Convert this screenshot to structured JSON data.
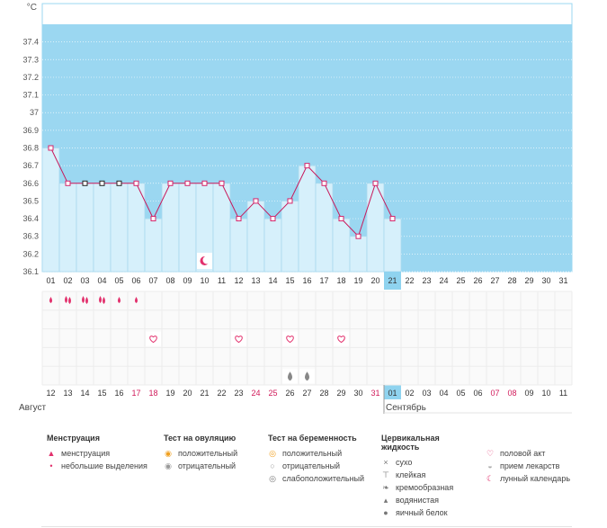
{
  "chart_data": {
    "type": "line",
    "y_unit": "°C",
    "ylim": [
      36.1,
      37.5
    ],
    "y_ticks": [
      "37.4",
      "37.3",
      "37.2",
      "37.1",
      "37",
      "36.9",
      "36.8",
      "36.7",
      "36.6",
      "36.5",
      "36.4",
      "36.3",
      "36.2",
      "36.1"
    ],
    "cycle_days": [
      "01",
      "02",
      "03",
      "04",
      "05",
      "06",
      "07",
      "08",
      "09",
      "10",
      "11",
      "12",
      "13",
      "14",
      "15",
      "16",
      "17",
      "18",
      "19",
      "20",
      "21",
      "22",
      "23",
      "24",
      "25",
      "26",
      "27",
      "28",
      "29",
      "30",
      "31"
    ],
    "current_day_index": 20,
    "temperatures": [
      36.8,
      36.6,
      36.6,
      36.6,
      36.6,
      36.6,
      36.4,
      36.6,
      36.6,
      36.6,
      36.6,
      36.4,
      36.5,
      36.4,
      36.5,
      36.7,
      36.6,
      36.4,
      36.3,
      36.6,
      36.4
    ],
    "hollow_marker_days": [
      3,
      4,
      5
    ],
    "moon_marker_day": 10,
    "calendar_dates": [
      "12",
      "13",
      "14",
      "15",
      "16",
      "17",
      "18",
      "19",
      "20",
      "21",
      "22",
      "23",
      "24",
      "25",
      "26",
      "27",
      "28",
      "29",
      "30",
      "31",
      "01",
      "02",
      "03",
      "04",
      "05",
      "06",
      "07",
      "08",
      "09",
      "10",
      "11"
    ],
    "weekend_indices": [
      5,
      6,
      12,
      13,
      19,
      26,
      27
    ],
    "month_labels": [
      {
        "text": "Август",
        "index": 0
      },
      {
        "text": "Сентябрь",
        "index": 20
      }
    ],
    "rows": {
      "menstruation": [
        "small",
        "heavy",
        "heavy",
        "heavy",
        "small",
        "small"
      ],
      "intercourse_indices": [
        6,
        11,
        14,
        17
      ],
      "fluid_egg_white_indices": [
        14,
        15
      ]
    }
  },
  "colors": {
    "plot_band": "#9bd7f1",
    "bar_fill": "#d6f0fb",
    "bar_stroke": "#a8d9ee",
    "line": "#c8185a",
    "marker": "#d4246a",
    "accent": "#e2306c",
    "current_day": "#8fd3ef",
    "weekend_text": "#d11a5a"
  },
  "legend": [
    {
      "title": "Менструация",
      "items": [
        {
          "icon": "drop-heavy-icon",
          "label": "менструация"
        },
        {
          "icon": "drop-small-icon",
          "label": "небольшие выделения"
        }
      ]
    },
    {
      "title": "Тест на овуляцию",
      "items": [
        {
          "icon": "ovulation-positive-icon",
          "label": "положительный"
        },
        {
          "icon": "ovulation-negative-icon",
          "label": "отрицательный"
        }
      ]
    },
    {
      "title": "Тест на беременность",
      "items": [
        {
          "icon": "pregnancy-positive-icon",
          "label": "положительный"
        },
        {
          "icon": "pregnancy-negative-icon",
          "label": "отрицательный"
        },
        {
          "icon": "pregnancy-weak-icon",
          "label": "слабоположительный"
        }
      ]
    },
    {
      "title": "Цервикальная жидкость",
      "items": [
        {
          "icon": "dry-icon",
          "label": "сухо"
        },
        {
          "icon": "sticky-icon",
          "label": "клейкая"
        },
        {
          "icon": "creamy-icon",
          "label": "кремообразная"
        },
        {
          "icon": "watery-icon",
          "label": "водянистая"
        },
        {
          "icon": "egg-white-icon",
          "label": "яичный белок"
        }
      ]
    },
    {
      "title": "",
      "items": [
        {
          "icon": "heart-icon",
          "label": "половой акт"
        },
        {
          "icon": "medication-icon",
          "label": "прием лекарств"
        },
        {
          "icon": "moon-icon",
          "label": "лунный календарь"
        }
      ]
    }
  ]
}
